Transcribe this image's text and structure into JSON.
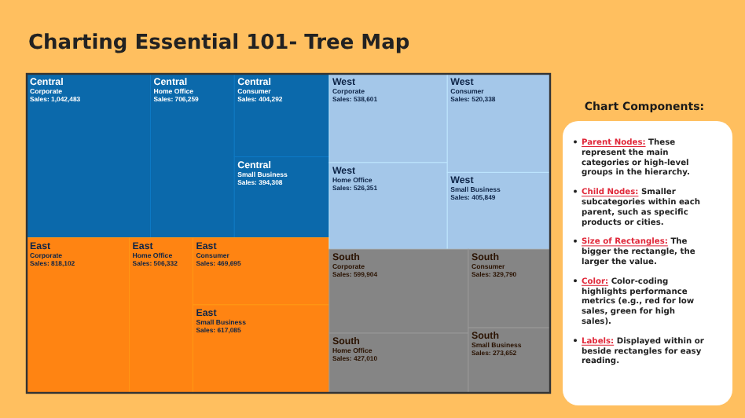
{
  "chart_data": {
    "type": "other",
    "title": "Charting Essential 101- Tree Map",
    "categories": [
      "Corporate",
      "Home Office",
      "Consumer",
      "Small Business"
    ],
    "series": [
      {
        "name": "Central",
        "color": "#0b69ab",
        "values": [
          1042483,
          706259,
          404292,
          394308
        ],
        "value_labels": [
          "Sales: 1,042,483",
          "Sales: 706,259",
          "Sales: 404,292",
          "Sales: 394,308"
        ]
      },
      {
        "name": "East",
        "color": "#ff8412",
        "values": [
          818102,
          506332,
          469695,
          617085
        ],
        "value_labels": [
          "Sales: 818,102",
          "Sales: 506,332",
          "Sales: 469,695",
          "Sales: 617,085"
        ]
      },
      {
        "name": "West",
        "color": "#a4c7e9",
        "values": [
          538601,
          526351,
          520338,
          405849
        ],
        "value_labels": [
          "Sales: 538,601",
          "Sales: 526,351",
          "Sales: 520,338",
          "Sales: 405,849"
        ]
      },
      {
        "name": "South",
        "color": "#858585",
        "values": [
          599904,
          427010,
          329790,
          273652
        ],
        "value_labels": [
          "Sales: 599,904",
          "Sales: 427,010",
          "Sales: 329,790",
          "Sales: 273,652"
        ]
      }
    ],
    "annotations": [
      "Chart Components:",
      "Parent Nodes: These represent the main categories or high-level groups in the hierarchy.",
      "Child Nodes: Smaller subcategories within each parent, such as specific products or cities.",
      "Size of Rectangles: The bigger the rectangle, the larger the value.",
      "Color:  Color-coding highlights performance metrics (e.g., red for low sales, green for high sales).",
      "Labels: Displayed within or beside rectangles for easy reading."
    ]
  }
}
